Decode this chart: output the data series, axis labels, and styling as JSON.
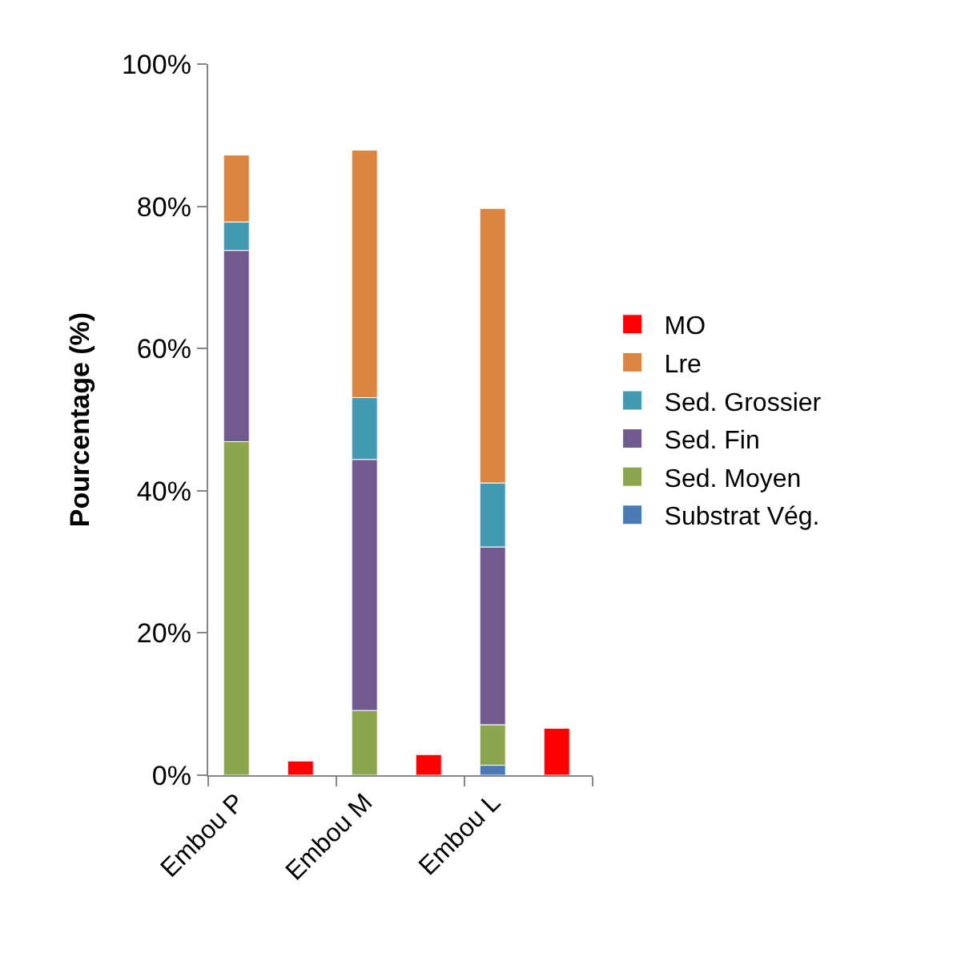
{
  "chart_data": {
    "type": "bar",
    "stacked": true,
    "ylabel": "Pourcentage (%)",
    "categories": [
      "Embou P",
      null,
      "Embou M",
      null,
      "Embou L",
      null
    ],
    "series": [
      {
        "name": "Substrat Vég.",
        "color": "#4a7ab5",
        "values": [
          0,
          null,
          0,
          null,
          1.4,
          null
        ]
      },
      {
        "name": "Sed. Moyen",
        "color": "#8ba64f",
        "values": [
          46.9,
          null,
          9.1,
          null,
          5.7,
          null
        ]
      },
      {
        "name": "Sed. Fin",
        "color": "#715a8e",
        "values": [
          26.9,
          null,
          35.3,
          null,
          25.0,
          null
        ]
      },
      {
        "name": "Sed. Grossier",
        "color": "#4299b2",
        "values": [
          4.0,
          null,
          8.7,
          null,
          9.0,
          null
        ]
      },
      {
        "name": "Lre",
        "color": "#dc8541",
        "values": [
          9.4,
          null,
          34.8,
          null,
          38.6,
          null
        ]
      },
      {
        "name": "MO",
        "color": "#ff0000",
        "values": [
          null,
          2.0,
          null,
          2.9,
          null,
          6.6
        ]
      }
    ],
    "ylim": [
      0,
      100
    ],
    "yticks": [
      {
        "value": 0,
        "label": "0%"
      },
      {
        "value": 20,
        "label": "20%"
      },
      {
        "value": 40,
        "label": "40%"
      },
      {
        "value": 60,
        "label": "60%"
      },
      {
        "value": 80,
        "label": "80%"
      },
      {
        "value": 100,
        "label": "100%"
      }
    ],
    "legend": "right"
  }
}
